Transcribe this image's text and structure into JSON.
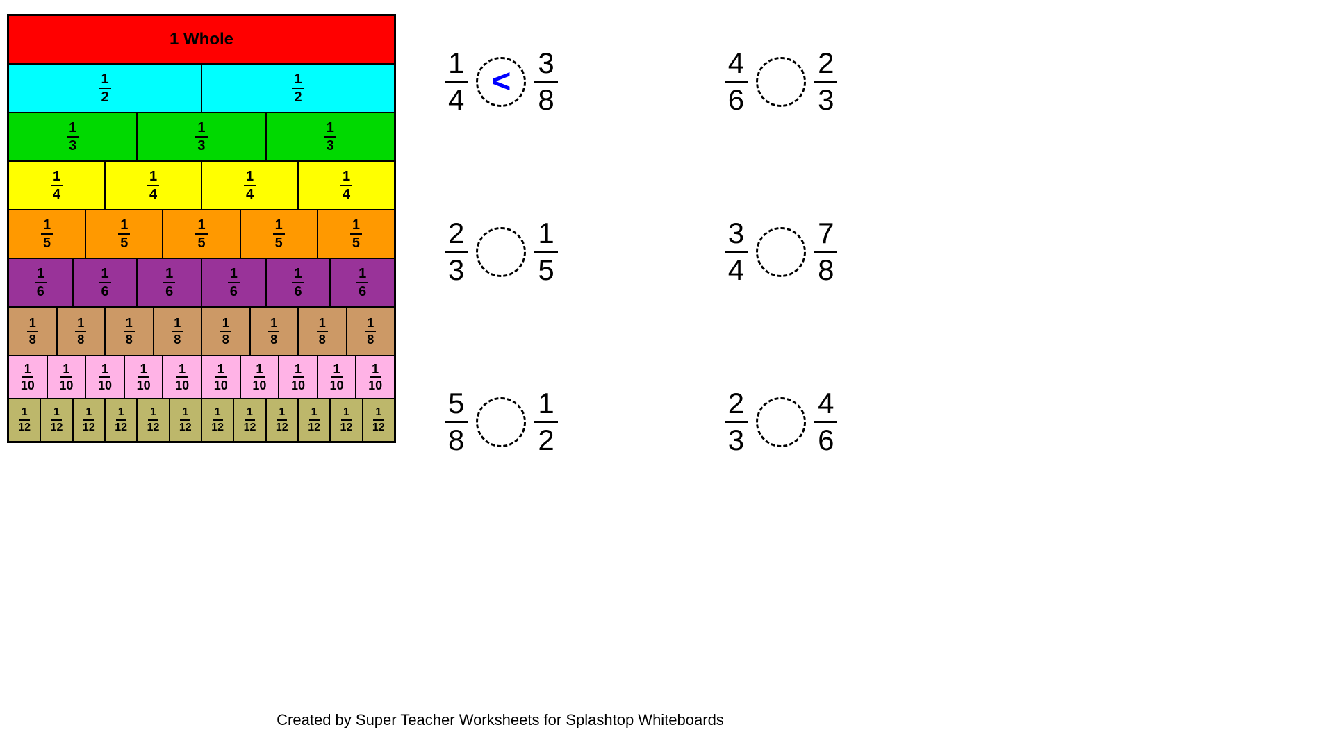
{
  "bars": {
    "whole_label": "1 Whole",
    "rows": [
      {
        "count": 1,
        "label_num": "1",
        "label_den": "1",
        "color": "#ff0000",
        "whole": true
      },
      {
        "count": 2,
        "label_num": "1",
        "label_den": "2",
        "color": "#00ffff"
      },
      {
        "count": 3,
        "label_num": "1",
        "label_den": "3",
        "color": "#00d900"
      },
      {
        "count": 4,
        "label_num": "1",
        "label_den": "4",
        "color": "#ffff00"
      },
      {
        "count": 5,
        "label_num": "1",
        "label_den": "5",
        "color": "#ff9900"
      },
      {
        "count": 6,
        "label_num": "1",
        "label_den": "6",
        "color": "#993399"
      },
      {
        "count": 8,
        "label_num": "1",
        "label_den": "8",
        "color": "#cc9966"
      },
      {
        "count": 10,
        "label_num": "1",
        "label_den": "10",
        "color": "#ffb3e6"
      },
      {
        "count": 12,
        "label_num": "1",
        "label_den": "12",
        "color": "#bdb76b"
      }
    ]
  },
  "problems": [
    [
      {
        "l_num": "1",
        "l_den": "4",
        "r_num": "3",
        "r_den": "8",
        "answer": "<"
      },
      {
        "l_num": "4",
        "l_den": "6",
        "r_num": "2",
        "r_den": "3",
        "answer": ""
      }
    ],
    [
      {
        "l_num": "2",
        "l_den": "3",
        "r_num": "1",
        "r_den": "5",
        "answer": ""
      },
      {
        "l_num": "3",
        "l_den": "4",
        "r_num": "7",
        "r_den": "8",
        "answer": ""
      }
    ],
    [
      {
        "l_num": "5",
        "l_den": "8",
        "r_num": "1",
        "r_den": "2",
        "answer": ""
      },
      {
        "l_num": "2",
        "l_den": "3",
        "r_num": "4",
        "r_den": "6",
        "answer": ""
      }
    ]
  ],
  "footer": "Created by Super Teacher Worksheets for Splashtop Whiteboards"
}
